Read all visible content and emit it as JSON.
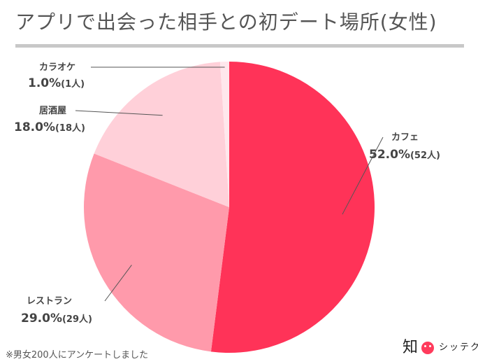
{
  "title": "アプリで出会った相手との初デート場所(女性)",
  "footnote": "※男女200人にアンケートしました",
  "logo": {
    "kanji": "知",
    "text": "シッテク",
    "face_color": "#ff3b5c"
  },
  "chart_data": {
    "type": "pie",
    "title": "アプリで出会った相手との初デート場所(女性)",
    "start": "12 o'clock",
    "direction": "clockwise",
    "slices": [
      {
        "label": "カフェ",
        "percent": "52.0%",
        "count": "(52人)",
        "value": 52,
        "color": "#ff3358"
      },
      {
        "label": "レストラン",
        "percent": "29.0%",
        "count": "(29人)",
        "value": 29,
        "color": "#ff9aab"
      },
      {
        "label": "居酒屋",
        "percent": "18.0%",
        "count": "(18人)",
        "value": 18,
        "color": "#ffd0d9"
      },
      {
        "label": "カラオケ",
        "percent": "1.0%",
        "count": "(1人)",
        "value": 1,
        "color": "#ffe7ec"
      }
    ]
  }
}
